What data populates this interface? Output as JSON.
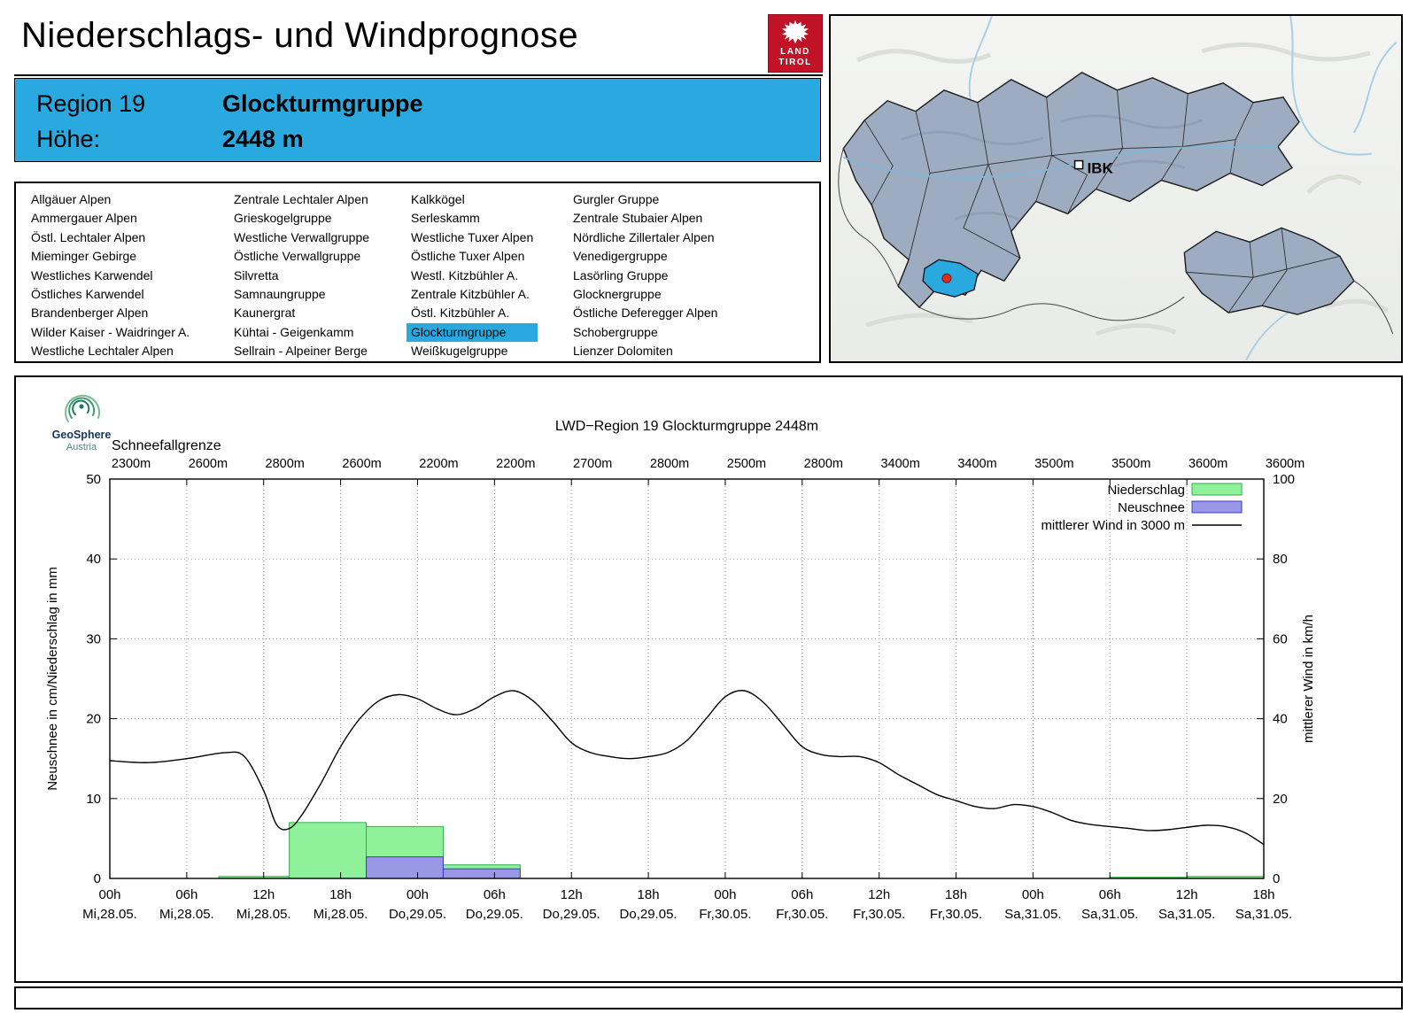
{
  "page": {
    "title": "Niederschlags- und Windprognose"
  },
  "logo": {
    "line1": "LAND",
    "line2": "TIROL"
  },
  "header": {
    "region_label": "Region 19",
    "region_name": "Glockturmgruppe",
    "hoehe_label": "Höhe:",
    "hoehe_value": "2448 m"
  },
  "region_list": {
    "selected": "Glockturmgruppe",
    "columns": [
      [
        "Allgäuer Alpen",
        "Ammergauer Alpen",
        "Östl. Lechtaler Alpen",
        "Mieminger Gebirge",
        "Westliches Karwendel",
        "Östliches Karwendel",
        "Brandenberger Alpen",
        "Wilder Kaiser - Waidringer A.",
        "Westliche Lechtaler Alpen"
      ],
      [
        "Zentrale Lechtaler Alpen",
        "Grieskogelgruppe",
        "Westliche Verwallgruppe",
        "Östliche Verwallgruppe",
        "Silvretta",
        "Samnaungruppe",
        "Kaunergrat",
        "Kühtai - Geigenkamm",
        "Sellrain - Alpeiner Berge"
      ],
      [
        "Kalkkögel",
        "Serleskamm",
        "Westliche Tuxer Alpen",
        "Östliche Tuxer Alpen",
        "Westl. Kitzbühler A.",
        "Zentrale Kitzbühler A.",
        "Östl. Kitzbühler A.",
        "Glockturmgruppe",
        "Weißkugelgruppe"
      ],
      [
        "Gurgler Gruppe",
        "Zentrale Stubaier Alpen",
        "Nördliche Zillertaler Alpen",
        "Venedigergruppe",
        "Lasörling Gruppe",
        "Glocknergruppe",
        "Östliche Deferegger Alpen",
        "Schobergruppe",
        "Lienzer Dolomiten"
      ]
    ]
  },
  "map": {
    "city_label": "IBK",
    "highlight_color": "#29a9e0"
  },
  "branding": {
    "geosphere_line1": "GeoSphere",
    "geosphere_line2": "Austria"
  },
  "chart_data": {
    "type": "line+bar",
    "title": "LWD−Region 19 Glockturmgruppe 2448m",
    "snowline_label": "Schneefallgrenze",
    "snowline_values": [
      "2300m",
      "2600m",
      "2800m",
      "2600m",
      "2200m",
      "2200m",
      "2700m",
      "2800m",
      "2500m",
      "2800m",
      "3400m",
      "3400m",
      "3500m",
      "3500m",
      "3600m",
      "3600m"
    ],
    "x_hours_max": 90,
    "x_ticks": [
      {
        "t": 0,
        "time": "00h",
        "date": "Mi,28.05."
      },
      {
        "t": 6,
        "time": "06h",
        "date": "Mi,28.05."
      },
      {
        "t": 12,
        "time": "12h",
        "date": "Mi,28.05."
      },
      {
        "t": 18,
        "time": "18h",
        "date": "Mi,28.05."
      },
      {
        "t": 24,
        "time": "00h",
        "date": "Do,29.05."
      },
      {
        "t": 30,
        "time": "06h",
        "date": "Do,29.05."
      },
      {
        "t": 36,
        "time": "12h",
        "date": "Do,29.05."
      },
      {
        "t": 42,
        "time": "18h",
        "date": "Do,29.05."
      },
      {
        "t": 48,
        "time": "00h",
        "date": "Fr,30.05."
      },
      {
        "t": 54,
        "time": "06h",
        "date": "Fr,30.05."
      },
      {
        "t": 60,
        "time": "12h",
        "date": "Fr,30.05."
      },
      {
        "t": 66,
        "time": "18h",
        "date": "Fr,30.05."
      },
      {
        "t": 72,
        "time": "00h",
        "date": "Sa,31.05."
      },
      {
        "t": 78,
        "time": "06h",
        "date": "Sa,31.05."
      },
      {
        "t": 84,
        "time": "12h",
        "date": "Sa,31.05."
      },
      {
        "t": 90,
        "time": "18h",
        "date": "Sa,31.05."
      }
    ],
    "y_left": {
      "label": "Neuschnee in cm/Niederschlag in mm",
      "min": 0,
      "max": 50,
      "ticks": [
        0,
        10,
        20,
        30,
        40,
        50
      ]
    },
    "y_right": {
      "label": "mittlerer Wind in km/h",
      "min": 0,
      "max": 100,
      "ticks": [
        0,
        20,
        40,
        60,
        80,
        100
      ]
    },
    "legend": [
      {
        "label": "Niederschlag",
        "swatch": "precip"
      },
      {
        "label": "Neuschnee",
        "swatch": "snow"
      },
      {
        "label": "mittlerer Wind in 3000 m",
        "swatch": "wind-line"
      }
    ],
    "colors": {
      "precip_fill": "#8ff29a",
      "precip_stroke": "#2fae4a",
      "snow_fill": "#9898e6",
      "snow_stroke": "#3c3cc0",
      "wind": "#000000",
      "grid": "#9a9a9a"
    },
    "series": {
      "niederschlag_mm": [
        {
          "from": 8.5,
          "to": 14,
          "mm": 0.25
        },
        {
          "from": 14,
          "to": 20,
          "mm": 7.0
        },
        {
          "from": 20,
          "to": 26,
          "mm": 6.5
        },
        {
          "from": 26,
          "to": 32,
          "mm": 1.7
        },
        {
          "from": 78,
          "to": 84,
          "mm": 0.15
        },
        {
          "from": 84,
          "to": 90,
          "mm": 0.25
        }
      ],
      "neuschnee_cm": [
        {
          "from": 20,
          "to": 26,
          "cm": 2.7
        },
        {
          "from": 26,
          "to": 32,
          "cm": 1.2
        }
      ],
      "wind_kmh": {
        "height_label": "3000 m",
        "points": [
          [
            0,
            29.5
          ],
          [
            3,
            29
          ],
          [
            6,
            30
          ],
          [
            9,
            31.5
          ],
          [
            10.5,
            30.5
          ],
          [
            12,
            22
          ],
          [
            13,
            13.5
          ],
          [
            14,
            12.5
          ],
          [
            15,
            16
          ],
          [
            16.5,
            24
          ],
          [
            18,
            33
          ],
          [
            19.5,
            40
          ],
          [
            21,
            44.5
          ],
          [
            22.5,
            46
          ],
          [
            24,
            45
          ],
          [
            25.5,
            42.5
          ],
          [
            27,
            41
          ],
          [
            28.5,
            42.5
          ],
          [
            30,
            45.5
          ],
          [
            31.5,
            47
          ],
          [
            33,
            44.5
          ],
          [
            34.5,
            39.5
          ],
          [
            36,
            34
          ],
          [
            37.5,
            31.5
          ],
          [
            39,
            30.5
          ],
          [
            40.5,
            30
          ],
          [
            42,
            30.5
          ],
          [
            43.5,
            31.5
          ],
          [
            45,
            34.5
          ],
          [
            46.5,
            40
          ],
          [
            48,
            45.5
          ],
          [
            49.5,
            47
          ],
          [
            51,
            44
          ],
          [
            52.5,
            38.5
          ],
          [
            54,
            33
          ],
          [
            55.5,
            31
          ],
          [
            57,
            30.5
          ],
          [
            58.5,
            30.5
          ],
          [
            60,
            29
          ],
          [
            61.5,
            26
          ],
          [
            63,
            23.5
          ],
          [
            64.5,
            21
          ],
          [
            66,
            19.5
          ],
          [
            67.5,
            18
          ],
          [
            69,
            17.5
          ],
          [
            70.5,
            18.5
          ],
          [
            72,
            18
          ],
          [
            73.5,
            16.5
          ],
          [
            75,
            14.5
          ],
          [
            76.5,
            13.5
          ],
          [
            78,
            13
          ],
          [
            79.5,
            12.5
          ],
          [
            81,
            12
          ],
          [
            82.5,
            12.2
          ],
          [
            84,
            12.8
          ],
          [
            85.5,
            13.3
          ],
          [
            87,
            13
          ],
          [
            88.5,
            11.5
          ],
          [
            90,
            8.5
          ]
        ]
      }
    }
  }
}
